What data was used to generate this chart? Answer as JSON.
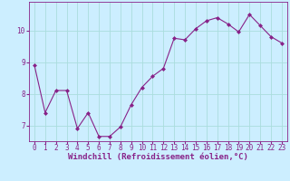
{
  "x": [
    0,
    1,
    2,
    3,
    4,
    5,
    6,
    7,
    8,
    9,
    10,
    11,
    12,
    13,
    14,
    15,
    16,
    17,
    18,
    19,
    20,
    21,
    22,
    23
  ],
  "y": [
    8.9,
    7.4,
    8.1,
    8.1,
    6.9,
    7.4,
    6.65,
    6.65,
    6.95,
    7.65,
    8.2,
    8.55,
    8.8,
    9.75,
    9.7,
    10.05,
    10.3,
    10.4,
    10.2,
    9.95,
    10.5,
    10.15,
    9.8,
    9.6
  ],
  "line_color": "#882288",
  "marker": "D",
  "marker_size": 2.0,
  "bg_color": "#cceeff",
  "grid_color": "#aadddd",
  "xlabel": "Windchill (Refroidissement éolien,°C)",
  "xlabel_color": "#882288",
  "tick_color": "#882288",
  "label_color": "#882288",
  "ylim": [
    6.5,
    10.9
  ],
  "yticks": [
    7,
    8,
    9,
    10
  ],
  "xlim": [
    -0.5,
    23.5
  ],
  "xticks": [
    0,
    1,
    2,
    3,
    4,
    5,
    6,
    7,
    8,
    9,
    10,
    11,
    12,
    13,
    14,
    15,
    16,
    17,
    18,
    19,
    20,
    21,
    22,
    23
  ],
  "xtick_labels": [
    "0",
    "1",
    "2",
    "3",
    "4",
    "5",
    "6",
    "7",
    "8",
    "9",
    "10",
    "11",
    "12",
    "13",
    "14",
    "15",
    "16",
    "17",
    "18",
    "19",
    "20",
    "21",
    "22",
    "23"
  ],
  "xlabel_fontsize": 6.5,
  "tick_fontsize": 5.5
}
